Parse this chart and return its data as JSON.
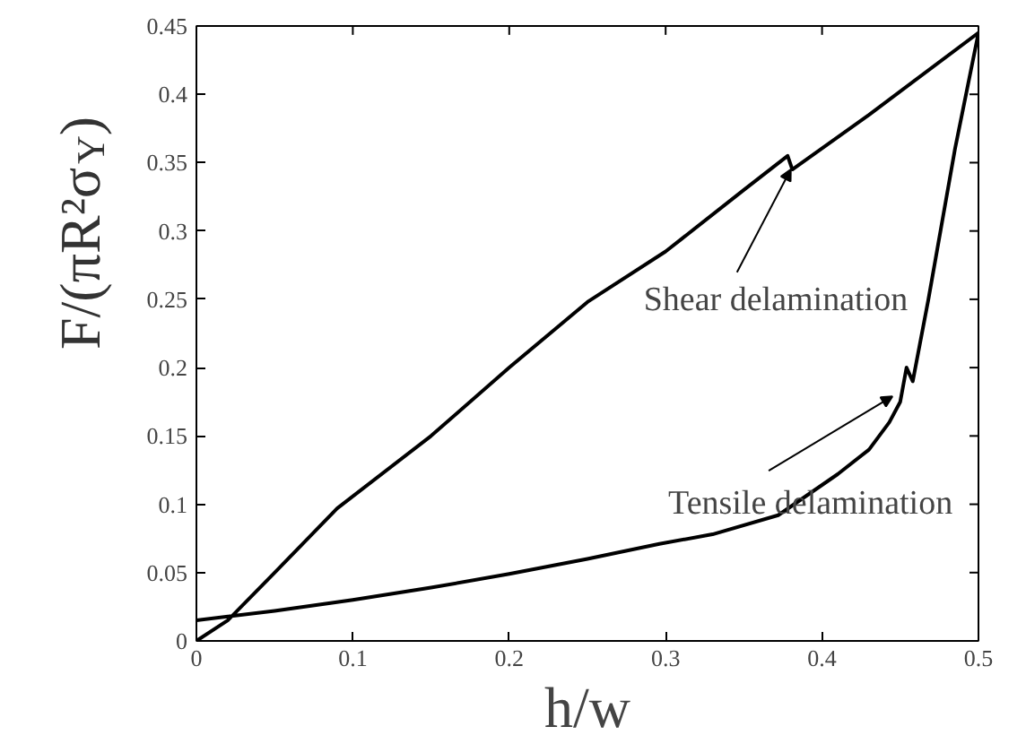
{
  "chart_data": {
    "type": "line",
    "xlabel": "h/w",
    "ylabel": "F/(πR²σ$_{Y}$)",
    "x": [
      0,
      0.02,
      0.05,
      0.09,
      0.15,
      0.2,
      0.25,
      0.3,
      0.35,
      0.378,
      0.381,
      0.43,
      0.5,
      0.485,
      0.468,
      0.458,
      0.454,
      0.45,
      0.443,
      0.43,
      0.41,
      0.372,
      0.33,
      0.296,
      0.25,
      0.2,
      0.15,
      0.1,
      0.05,
      0
    ],
    "series": [
      {
        "color": "#000000",
        "values": [
          0,
          0.015,
          0.05,
          0.097,
          0.15,
          0.2,
          0.248,
          0.285,
          0.33,
          0.355,
          0.345,
          0.385,
          0.445,
          0.36,
          0.25,
          0.19,
          0.2,
          0.175,
          0.16,
          0.14,
          0.122,
          0.092,
          0.078,
          0.071,
          0.06,
          0.049,
          0.039,
          0.03,
          0.022,
          0.015
        ]
      }
    ],
    "xlim": [
      0,
      0.5
    ],
    "ylim": [
      0,
      0.45
    ],
    "xticks": [
      0,
      0.1,
      0.2,
      0.3,
      0.4,
      0.5
    ],
    "yticks": [
      0,
      0.05,
      0.1,
      0.15,
      0.2,
      0.25,
      0.3,
      0.35,
      0.4,
      0.45
    ],
    "grid": false,
    "marker": "none",
    "line_style": "solid",
    "annotations": [
      {
        "text": "Shear delamination",
        "x": 0.38,
        "y": 0.345
      },
      {
        "text": "Tensile delamination",
        "x": 0.445,
        "y": 0.179
      }
    ]
  }
}
